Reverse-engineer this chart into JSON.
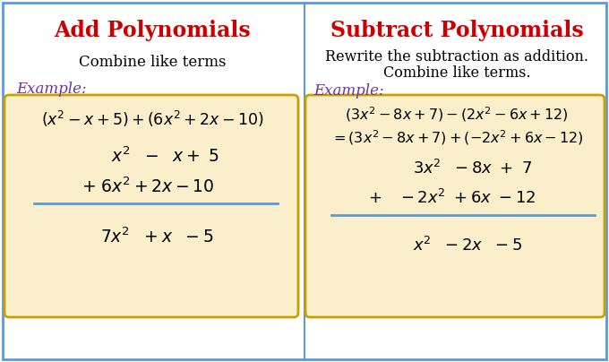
{
  "bg_color": "#ffffff",
  "border_color": "#5b9bd5",
  "title_color": "#cc0000",
  "example_color": "#7030a0",
  "text_color": "#000000",
  "box_bg_color": "#faeecb",
  "box_border_color": "#c8a000",
  "left_title": "Add Polynomials",
  "left_subtitle": "Combine like terms",
  "left_example_label": "Example:",
  "right_title": "Subtract Polynomials",
  "right_subtitle1": "Rewrite the subtraction as addition.",
  "right_subtitle2": "Combine like terms.",
  "right_example_label": "Example:"
}
